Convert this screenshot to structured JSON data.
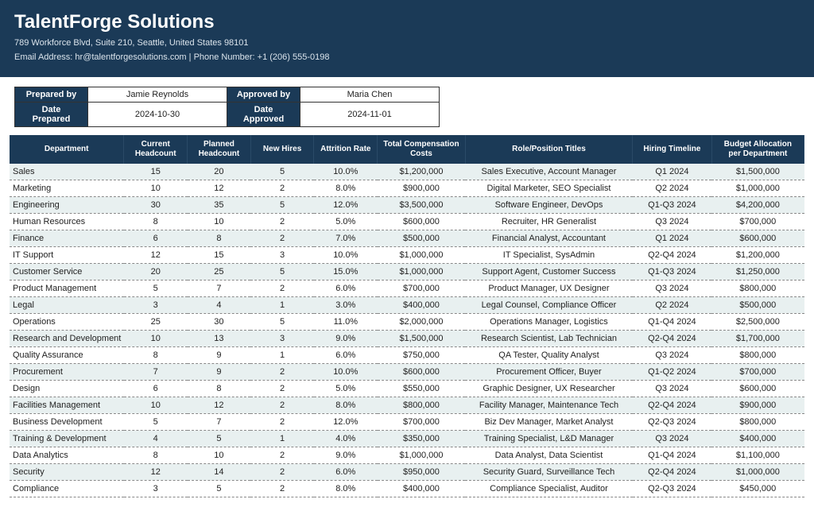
{
  "header": {
    "company": "TalentForge Solutions",
    "address": "789 Workforce Blvd, Suite 210, Seattle, United States 98101",
    "contact": "Email Address: hr@talentforgesolutions.com  |  Phone Number: +1 (206) 555-0198"
  },
  "meta": {
    "prepared_by_label": "Prepared by",
    "prepared_by": "Jamie Reynolds",
    "approved_by_label": "Approved by",
    "approved_by": "Maria Chen",
    "date_prepared_label": "Date Prepared",
    "date_prepared": "2024-10-30",
    "date_approved_label": "Date Approved",
    "date_approved": "2024-11-01"
  },
  "table": {
    "columns": [
      "Department",
      "Current Headcount",
      "Planned Headcount",
      "New Hires",
      "Attrition Rate",
      "Total Compensation Costs",
      "Role/Position Titles",
      "Hiring Timeline",
      "Budget Allocation per Department"
    ],
    "rows": [
      [
        "Sales",
        "15",
        "20",
        "5",
        "10.0%",
        "$1,200,000",
        "Sales Executive, Account Manager",
        "Q1 2024",
        "$1,500,000"
      ],
      [
        "Marketing",
        "10",
        "12",
        "2",
        "8.0%",
        "$900,000",
        "Digital Marketer, SEO Specialist",
        "Q2 2024",
        "$1,000,000"
      ],
      [
        "Engineering",
        "30",
        "35",
        "5",
        "12.0%",
        "$3,500,000",
        "Software Engineer, DevOps",
        "Q1-Q3 2024",
        "$4,200,000"
      ],
      [
        "Human Resources",
        "8",
        "10",
        "2",
        "5.0%",
        "$600,000",
        "Recruiter, HR Generalist",
        "Q3 2024",
        "$700,000"
      ],
      [
        "Finance",
        "6",
        "8",
        "2",
        "7.0%",
        "$500,000",
        "Financial Analyst, Accountant",
        "Q1 2024",
        "$600,000"
      ],
      [
        "IT Support",
        "12",
        "15",
        "3",
        "10.0%",
        "$1,000,000",
        "IT Specialist, SysAdmin",
        "Q2-Q4 2024",
        "$1,200,000"
      ],
      [
        "Customer Service",
        "20",
        "25",
        "5",
        "15.0%",
        "$1,000,000",
        "Support Agent, Customer Success",
        "Q1-Q3 2024",
        "$1,250,000"
      ],
      [
        "Product Management",
        "5",
        "7",
        "2",
        "6.0%",
        "$700,000",
        "Product Manager, UX Designer",
        "Q3 2024",
        "$800,000"
      ],
      [
        "Legal",
        "3",
        "4",
        "1",
        "3.0%",
        "$400,000",
        "Legal Counsel, Compliance Officer",
        "Q2 2024",
        "$500,000"
      ],
      [
        "Operations",
        "25",
        "30",
        "5",
        "11.0%",
        "$2,000,000",
        "Operations Manager, Logistics",
        "Q1-Q4 2024",
        "$2,500,000"
      ],
      [
        "Research and Development",
        "10",
        "13",
        "3",
        "9.0%",
        "$1,500,000",
        "Research Scientist, Lab Technician",
        "Q2-Q4 2024",
        "$1,700,000"
      ],
      [
        "Quality Assurance",
        "8",
        "9",
        "1",
        "6.0%",
        "$750,000",
        "QA Tester, Quality Analyst",
        "Q3 2024",
        "$800,000"
      ],
      [
        "Procurement",
        "7",
        "9",
        "2",
        "10.0%",
        "$600,000",
        "Procurement Officer, Buyer",
        "Q1-Q2 2024",
        "$700,000"
      ],
      [
        "Design",
        "6",
        "8",
        "2",
        "5.0%",
        "$550,000",
        "Graphic Designer, UX Researcher",
        "Q3 2024",
        "$600,000"
      ],
      [
        "Facilities Management",
        "10",
        "12",
        "2",
        "8.0%",
        "$800,000",
        "Facility Manager, Maintenance Tech",
        "Q2-Q4 2024",
        "$900,000"
      ],
      [
        "Business Development",
        "5",
        "7",
        "2",
        "12.0%",
        "$700,000",
        "Biz Dev Manager, Market Analyst",
        "Q2-Q3 2024",
        "$800,000"
      ],
      [
        "Training & Development",
        "4",
        "5",
        "1",
        "4.0%",
        "$350,000",
        "Training Specialist, L&D Manager",
        "Q3 2024",
        "$400,000"
      ],
      [
        "Data Analytics",
        "8",
        "10",
        "2",
        "9.0%",
        "$1,000,000",
        "Data Analyst, Data Scientist",
        "Q1-Q4 2024",
        "$1,100,000"
      ],
      [
        "Security",
        "12",
        "14",
        "2",
        "6.0%",
        "$950,000",
        "Security Guard, Surveillance Tech",
        "Q2-Q4 2024",
        "$1,000,000"
      ],
      [
        "Compliance",
        "3",
        "5",
        "2",
        "8.0%",
        "$400,000",
        "Compliance Specialist, Auditor",
        "Q2-Q3 2024",
        "$450,000"
      ]
    ]
  },
  "styling": {
    "header_bg": "#1b3a57",
    "header_text": "#ffffff",
    "row_odd_bg": "#e8f0f0",
    "row_even_bg": "#ffffff",
    "border_dash": "#888888",
    "base_font_size": 11,
    "title_font_size": 24
  }
}
